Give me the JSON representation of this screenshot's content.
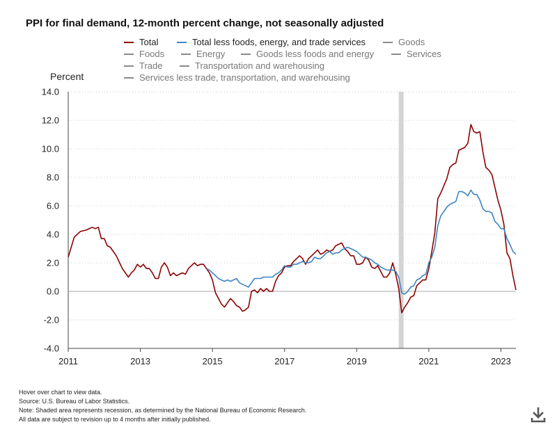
{
  "title": "PPI for final demand, 12-month percent change, not seasonally adjusted",
  "legend": [
    {
      "label": "Total",
      "color": "#8b0000",
      "active": true
    },
    {
      "label": "Total less foods, energy, and trade services",
      "color": "#3c84c0",
      "active": true
    },
    {
      "label": "Goods",
      "color": "#8a8a8a",
      "active": false
    },
    {
      "label": "Foods",
      "color": "#8a8a8a",
      "active": false
    },
    {
      "label": "Energy",
      "color": "#8a8a8a",
      "active": false
    },
    {
      "label": "Goods less foods and energy",
      "color": "#8a8a8a",
      "active": false
    },
    {
      "label": "Services",
      "color": "#8a8a8a",
      "active": false
    },
    {
      "label": "Trade",
      "color": "#8a8a8a",
      "active": false
    },
    {
      "label": "Transportation and warehousing",
      "color": "#8a8a8a",
      "active": false
    },
    {
      "label": "Services less trade, transportation, and warehousing",
      "color": "#8a8a8a",
      "active": false
    }
  ],
  "notes": [
    "Hover over chart to view data.",
    "Source: U.S. Bureau of Labor Statistics.",
    "Note: Shaded area represents recession, as determined by the National Bureau of Economic Research.",
    "All data are subject to revision up to 4 months after initially published."
  ],
  "chart_data": {
    "type": "line",
    "ylabel": "Percent",
    "xlim": [
      "2011-01",
      "2023-06"
    ],
    "ylim": [
      -4.0,
      14.0
    ],
    "yticks": [
      "14.0",
      "12.0",
      "10.0",
      "8.0",
      "6.0",
      "4.0",
      "2.0",
      "0.0",
      "-2.0",
      "-4.0"
    ],
    "xticks": [
      "2011",
      "2013",
      "2015",
      "2017",
      "2019",
      "2021",
      "2023"
    ],
    "grid": "horizontal dotted",
    "recession": {
      "start": "2020-03",
      "end": "2020-04"
    },
    "series": [
      {
        "name": "Total",
        "color": "#8b0000",
        "points": [
          [
            "2011-01",
            2.4
          ],
          [
            "2011-03",
            3.8
          ],
          [
            "2011-05",
            4.2
          ],
          [
            "2011-07",
            4.3
          ],
          [
            "2011-09",
            4.5
          ],
          [
            "2011-10",
            4.4
          ],
          [
            "2011-11",
            4.5
          ],
          [
            "2011-12",
            3.7
          ],
          [
            "2012-01",
            3.7
          ],
          [
            "2012-02",
            3.2
          ],
          [
            "2012-03",
            3.1
          ],
          [
            "2012-05",
            2.5
          ],
          [
            "2012-07",
            1.6
          ],
          [
            "2012-09",
            1.0
          ],
          [
            "2012-10",
            1.3
          ],
          [
            "2012-11",
            1.5
          ],
          [
            "2012-12",
            1.9
          ],
          [
            "2013-01",
            1.7
          ],
          [
            "2013-02",
            1.9
          ],
          [
            "2013-03",
            1.6
          ],
          [
            "2013-04",
            1.6
          ],
          [
            "2013-05",
            1.3
          ],
          [
            "2013-06",
            0.9
          ],
          [
            "2013-07",
            0.9
          ],
          [
            "2013-08",
            1.7
          ],
          [
            "2013-09",
            2.0
          ],
          [
            "2013-10",
            1.7
          ],
          [
            "2013-11",
            1.1
          ],
          [
            "2013-12",
            1.3
          ],
          [
            "2014-01",
            1.1
          ],
          [
            "2014-02",
            1.2
          ],
          [
            "2014-03",
            1.3
          ],
          [
            "2014-04",
            1.2
          ],
          [
            "2014-05",
            1.6
          ],
          [
            "2014-06",
            1.8
          ],
          [
            "2014-07",
            2.0
          ],
          [
            "2014-08",
            1.8
          ],
          [
            "2014-09",
            1.9
          ],
          [
            "2014-10",
            1.9
          ],
          [
            "2014-11",
            1.6
          ],
          [
            "2014-12",
            1.3
          ],
          [
            "2015-01",
            0.8
          ],
          [
            "2015-02",
            -0.1
          ],
          [
            "2015-03",
            -0.5
          ],
          [
            "2015-04",
            -0.9
          ],
          [
            "2015-05",
            -1.1
          ],
          [
            "2015-06",
            -0.8
          ],
          [
            "2015-07",
            -0.5
          ],
          [
            "2015-08",
            -0.7
          ],
          [
            "2015-09",
            -1.0
          ],
          [
            "2015-10",
            -1.1
          ],
          [
            "2015-11",
            -1.4
          ],
          [
            "2015-12",
            -1.3
          ],
          [
            "2016-01",
            -1.1
          ],
          [
            "2016-02",
            0.0
          ],
          [
            "2016-03",
            0.1
          ],
          [
            "2016-04",
            -0.1
          ],
          [
            "2016-05",
            0.2
          ],
          [
            "2016-06",
            0.0
          ],
          [
            "2016-07",
            0.2
          ],
          [
            "2016-08",
            0.0
          ],
          [
            "2016-09",
            0.0
          ],
          [
            "2016-10",
            0.7
          ],
          [
            "2016-11",
            1.1
          ],
          [
            "2016-12",
            1.3
          ],
          [
            "2017-01",
            1.7
          ],
          [
            "2017-02",
            1.8
          ],
          [
            "2017-03",
            1.8
          ],
          [
            "2017-04",
            2.1
          ],
          [
            "2017-05",
            2.3
          ],
          [
            "2017-06",
            2.5
          ],
          [
            "2017-07",
            2.3
          ],
          [
            "2017-08",
            1.9
          ],
          [
            "2017-09",
            2.3
          ],
          [
            "2017-10",
            2.5
          ],
          [
            "2017-11",
            2.7
          ],
          [
            "2017-12",
            2.9
          ],
          [
            "2018-01",
            2.6
          ],
          [
            "2018-02",
            2.7
          ],
          [
            "2018-03",
            2.9
          ],
          [
            "2018-04",
            2.8
          ],
          [
            "2018-05",
            2.9
          ],
          [
            "2018-06",
            3.2
          ],
          [
            "2018-07",
            3.3
          ],
          [
            "2018-08",
            3.4
          ],
          [
            "2018-09",
            3.0
          ],
          [
            "2018-10",
            2.8
          ],
          [
            "2018-11",
            2.5
          ],
          [
            "2018-12",
            2.5
          ],
          [
            "2019-01",
            1.9
          ],
          [
            "2019-02",
            1.9
          ],
          [
            "2019-03",
            2.0
          ],
          [
            "2019-04",
            2.4
          ],
          [
            "2019-05",
            2.2
          ],
          [
            "2019-06",
            1.7
          ],
          [
            "2019-07",
            1.6
          ],
          [
            "2019-08",
            1.8
          ],
          [
            "2019-09",
            1.4
          ],
          [
            "2019-10",
            1.0
          ],
          [
            "2019-11",
            1.0
          ],
          [
            "2019-12",
            1.3
          ],
          [
            "2020-01",
            2.0
          ],
          [
            "2020-02",
            1.2
          ],
          [
            "2020-03",
            0.2
          ],
          [
            "2020-04",
            -1.5
          ],
          [
            "2020-05",
            -1.1
          ],
          [
            "2020-06",
            -0.8
          ],
          [
            "2020-07",
            -0.4
          ],
          [
            "2020-08",
            -0.3
          ],
          [
            "2020-09",
            0.4
          ],
          [
            "2020-10",
            0.6
          ],
          [
            "2020-11",
            0.8
          ],
          [
            "2020-12",
            0.8
          ],
          [
            "2021-01",
            1.6
          ],
          [
            "2021-02",
            2.8
          ],
          [
            "2021-03",
            4.1
          ],
          [
            "2021-04",
            6.5
          ],
          [
            "2021-05",
            6.9
          ],
          [
            "2021-06",
            7.4
          ],
          [
            "2021-07",
            7.9
          ],
          [
            "2021-08",
            8.7
          ],
          [
            "2021-09",
            8.9
          ],
          [
            "2021-10",
            9.0
          ],
          [
            "2021-11",
            9.9
          ],
          [
            "2021-12",
            10.0
          ],
          [
            "2022-01",
            10.1
          ],
          [
            "2022-02",
            10.4
          ],
          [
            "2022-03",
            11.7
          ],
          [
            "2022-04",
            11.2
          ],
          [
            "2022-05",
            11.1
          ],
          [
            "2022-06",
            11.2
          ],
          [
            "2022-07",
            9.8
          ],
          [
            "2022-08",
            8.7
          ],
          [
            "2022-09",
            8.5
          ],
          [
            "2022-10",
            8.2
          ],
          [
            "2022-11",
            7.3
          ],
          [
            "2022-12",
            6.4
          ],
          [
            "2023-01",
            5.7
          ],
          [
            "2023-02",
            4.7
          ],
          [
            "2023-03",
            2.7
          ],
          [
            "2023-04",
            2.3
          ],
          [
            "2023-05",
            1.1
          ],
          [
            "2023-06",
            0.1
          ]
        ]
      },
      {
        "name": "Total less foods, energy, and trade services",
        "color": "#3c84c0",
        "points": [
          [
            "2014-11",
            1.6
          ],
          [
            "2014-12",
            1.5
          ],
          [
            "2015-01",
            1.3
          ],
          [
            "2015-02",
            1.1
          ],
          [
            "2015-03",
            0.9
          ],
          [
            "2015-04",
            0.8
          ],
          [
            "2015-05",
            0.7
          ],
          [
            "2015-06",
            0.8
          ],
          [
            "2015-07",
            0.7
          ],
          [
            "2015-08",
            0.8
          ],
          [
            "2015-09",
            0.9
          ],
          [
            "2015-10",
            0.6
          ],
          [
            "2015-11",
            0.5
          ],
          [
            "2015-12",
            0.4
          ],
          [
            "2016-01",
            0.3
          ],
          [
            "2016-02",
            0.6
          ],
          [
            "2016-03",
            0.9
          ],
          [
            "2016-04",
            0.9
          ],
          [
            "2016-05",
            0.9
          ],
          [
            "2016-06",
            1.0
          ],
          [
            "2016-07",
            1.0
          ],
          [
            "2016-08",
            1.0
          ],
          [
            "2016-09",
            1.0
          ],
          [
            "2016-10",
            1.2
          ],
          [
            "2016-11",
            1.3
          ],
          [
            "2016-12",
            1.5
          ],
          [
            "2017-01",
            1.8
          ],
          [
            "2017-02",
            1.7
          ],
          [
            "2017-03",
            1.7
          ],
          [
            "2017-04",
            1.9
          ],
          [
            "2017-05",
            1.9
          ],
          [
            "2017-06",
            2.0
          ],
          [
            "2017-07",
            2.1
          ],
          [
            "2017-08",
            2.0
          ],
          [
            "2017-09",
            2.0
          ],
          [
            "2017-10",
            2.1
          ],
          [
            "2017-11",
            2.4
          ],
          [
            "2017-12",
            2.3
          ],
          [
            "2018-01",
            2.3
          ],
          [
            "2018-02",
            2.5
          ],
          [
            "2018-03",
            2.7
          ],
          [
            "2018-04",
            2.8
          ],
          [
            "2018-05",
            2.6
          ],
          [
            "2018-06",
            2.7
          ],
          [
            "2018-07",
            2.7
          ],
          [
            "2018-08",
            2.9
          ],
          [
            "2018-09",
            3.0
          ],
          [
            "2018-10",
            3.1
          ],
          [
            "2018-11",
            3.0
          ],
          [
            "2018-12",
            2.9
          ],
          [
            "2019-01",
            2.8
          ],
          [
            "2019-02",
            2.6
          ],
          [
            "2019-03",
            2.4
          ],
          [
            "2019-04",
            2.4
          ],
          [
            "2019-05",
            2.3
          ],
          [
            "2019-06",
            2.2
          ],
          [
            "2019-07",
            2.0
          ],
          [
            "2019-08",
            1.9
          ],
          [
            "2019-09",
            1.7
          ],
          [
            "2019-10",
            1.6
          ],
          [
            "2019-11",
            1.5
          ],
          [
            "2019-12",
            1.5
          ],
          [
            "2020-01",
            1.5
          ],
          [
            "2020-02",
            1.4
          ],
          [
            "2020-03",
            1.0
          ],
          [
            "2020-04",
            -0.1
          ],
          [
            "2020-05",
            -0.2
          ],
          [
            "2020-06",
            0.0
          ],
          [
            "2020-07",
            0.3
          ],
          [
            "2020-08",
            0.4
          ],
          [
            "2020-09",
            0.8
          ],
          [
            "2020-10",
            0.9
          ],
          [
            "2020-11",
            1.1
          ],
          [
            "2020-12",
            1.2
          ],
          [
            "2021-01",
            2.0
          ],
          [
            "2021-02",
            2.4
          ],
          [
            "2021-03",
            3.1
          ],
          [
            "2021-04",
            4.6
          ],
          [
            "2021-05",
            5.3
          ],
          [
            "2021-06",
            5.6
          ],
          [
            "2021-07",
            5.9
          ],
          [
            "2021-08",
            6.1
          ],
          [
            "2021-09",
            6.2
          ],
          [
            "2021-10",
            6.3
          ],
          [
            "2021-11",
            7.0
          ],
          [
            "2021-12",
            7.0
          ],
          [
            "2022-01",
            6.9
          ],
          [
            "2022-02",
            6.7
          ],
          [
            "2022-03",
            7.1
          ],
          [
            "2022-04",
            6.8
          ],
          [
            "2022-05",
            6.8
          ],
          [
            "2022-06",
            6.4
          ],
          [
            "2022-07",
            5.8
          ],
          [
            "2022-08",
            5.6
          ],
          [
            "2022-09",
            5.6
          ],
          [
            "2022-10",
            5.5
          ],
          [
            "2022-11",
            4.9
          ],
          [
            "2022-12",
            4.7
          ],
          [
            "2023-01",
            4.4
          ],
          [
            "2023-02",
            4.4
          ],
          [
            "2023-03",
            3.7
          ],
          [
            "2023-04",
            3.3
          ],
          [
            "2023-05",
            2.8
          ],
          [
            "2023-06",
            2.6
          ]
        ]
      }
    ]
  }
}
